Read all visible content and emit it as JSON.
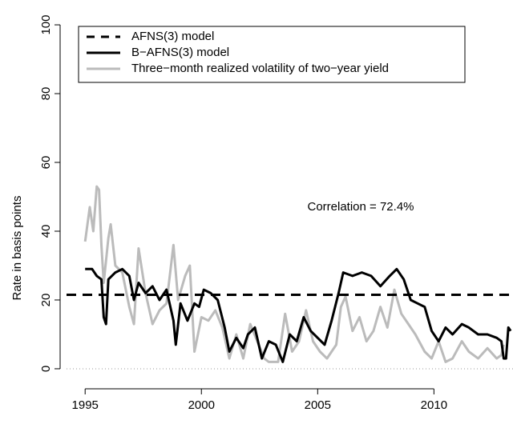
{
  "chart_data": {
    "type": "line",
    "ylabel": "Rate in basis points",
    "annotation": "Correlation = 72.4%",
    "xlim": [
      1994.2,
      2013.4
    ],
    "ylim": [
      -3.5,
      103.5
    ],
    "xticks": [
      1995,
      2000,
      2005,
      2010
    ],
    "yticks": [
      0,
      20,
      40,
      60,
      80,
      100
    ],
    "series": [
      {
        "name": "AFNS(3) model",
        "color": "#000000",
        "linestyle": "dashed",
        "x": [
          1994.2,
          2013.4
        ],
        "values": [
          21.5,
          21.5
        ]
      },
      {
        "name": "B−AFNS(3) model",
        "color": "#000000",
        "linestyle": "solid",
        "x": [
          1995.0,
          1995.3,
          1995.5,
          1995.7,
          1995.8,
          1995.9,
          1996.0,
          1996.3,
          1996.6,
          1996.9,
          1997.1,
          1997.3,
          1997.6,
          1997.9,
          1998.2,
          1998.5,
          1998.8,
          1998.9,
          1999.1,
          1999.4,
          1999.7,
          1999.9,
          2000.1,
          2000.4,
          2000.7,
          2001.0,
          2001.2,
          2001.5,
          2001.8,
          2002.0,
          2002.3,
          2002.6,
          2002.9,
          2003.2,
          2003.5,
          2003.8,
          2004.1,
          2004.4,
          2004.7,
          2005.0,
          2005.3,
          2005.6,
          2005.9,
          2006.1,
          2006.5,
          2006.9,
          2007.3,
          2007.7,
          2008.1,
          2008.4,
          2008.7,
          2009.0,
          2009.3,
          2009.6,
          2009.9,
          2010.2,
          2010.5,
          2010.8,
          2011.2,
          2011.5,
          2011.9,
          2012.3,
          2012.7,
          2012.9,
          2013.0,
          2013.1,
          2013.2,
          2013.3
        ],
        "values": [
          29,
          29,
          27,
          26,
          15,
          13,
          26,
          28,
          29,
          27,
          20,
          25,
          22,
          24,
          20,
          23,
          14,
          7,
          19,
          14,
          19,
          18,
          23,
          22,
          20,
          12,
          5,
          9,
          6,
          10,
          12,
          3,
          8,
          7,
          2,
          10,
          8,
          15,
          11,
          9,
          7,
          14,
          22,
          28,
          27,
          28,
          27,
          24,
          27,
          29,
          26,
          20,
          19,
          18,
          11,
          8,
          12,
          10,
          13,
          12,
          10,
          10,
          9,
          8,
          3,
          3,
          12,
          11
        ]
      },
      {
        "name": "Three−month realized volatility of two−year yield",
        "color": "#bbbbbb",
        "linestyle": "solid",
        "x": [
          1995.0,
          1995.2,
          1995.35,
          1995.5,
          1995.6,
          1995.7,
          1995.8,
          1996.0,
          1996.1,
          1996.3,
          1996.6,
          1996.9,
          1997.1,
          1997.3,
          1997.6,
          1997.9,
          1998.2,
          1998.5,
          1998.8,
          1999.0,
          1999.3,
          1999.5,
          1999.7,
          2000.0,
          2000.3,
          2000.6,
          2000.9,
          2001.2,
          2001.5,
          2001.8,
          2002.1,
          2002.4,
          2002.7,
          2002.9,
          2003.3,
          2003.6,
          2003.9,
          2004.2,
          2004.5,
          2004.8,
          2005.1,
          2005.4,
          2005.8,
          2006.0,
          2006.2,
          2006.5,
          2006.8,
          2007.1,
          2007.4,
          2007.7,
          2008.0,
          2008.3,
          2008.6,
          2008.9,
          2009.2,
          2009.6,
          2009.9,
          2010.2,
          2010.5,
          2010.8,
          2011.2,
          2011.5,
          2011.9,
          2012.3,
          2012.7,
          2012.9,
          2013.0
        ],
        "values": [
          37,
          47,
          40,
          53,
          52,
          36,
          25,
          38,
          42,
          30,
          28,
          18,
          13,
          35,
          22,
          13,
          17,
          19,
          36,
          20,
          27,
          30,
          5,
          15,
          14,
          17,
          12,
          3,
          10,
          3,
          13,
          8,
          3,
          2,
          2,
          16,
          5,
          8,
          17,
          8,
          5,
          3,
          7,
          18,
          21,
          11,
          15,
          8,
          11,
          18,
          12,
          23,
          16,
          13,
          10,
          5,
          3,
          8,
          2,
          3,
          8,
          5,
          3,
          6,
          3,
          4,
          7
        ]
      }
    ]
  }
}
